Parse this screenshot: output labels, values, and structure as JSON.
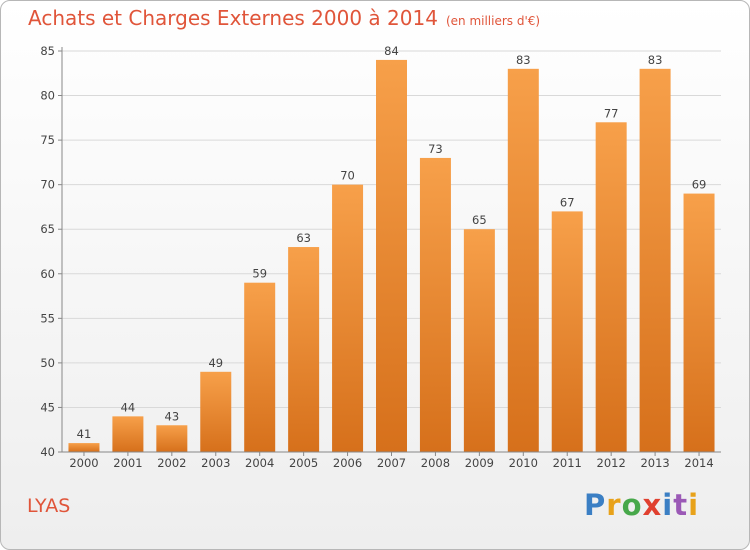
{
  "header": {
    "title": "Achats et Charges Externes 2000 à 2014",
    "unit": "(en milliers d'€)"
  },
  "footer": {
    "commune": "LYAS",
    "logo_text": "Proxiti"
  },
  "colors": {
    "title": "#e0553a",
    "bar_light": "#f7a04a",
    "bar_dark": "#d9711c",
    "grid": "#d9d9d9"
  },
  "chart_data": {
    "type": "bar",
    "categories": [
      "2000",
      "2001",
      "2002",
      "2003",
      "2004",
      "2005",
      "2006",
      "2007",
      "2008",
      "2009",
      "2010",
      "2011",
      "2012",
      "2013",
      "2014"
    ],
    "values": [
      41,
      44,
      43,
      49,
      59,
      63,
      70,
      84,
      73,
      65,
      83,
      67,
      77,
      83,
      69
    ],
    "ylim": [
      40,
      85
    ],
    "yticks": [
      40,
      45,
      50,
      55,
      60,
      65,
      70,
      75,
      80,
      85
    ],
    "title": "Achats et Charges Externes 2000 à 2014",
    "xlabel": "",
    "ylabel": "",
    "grid": true,
    "data_labels": true
  }
}
